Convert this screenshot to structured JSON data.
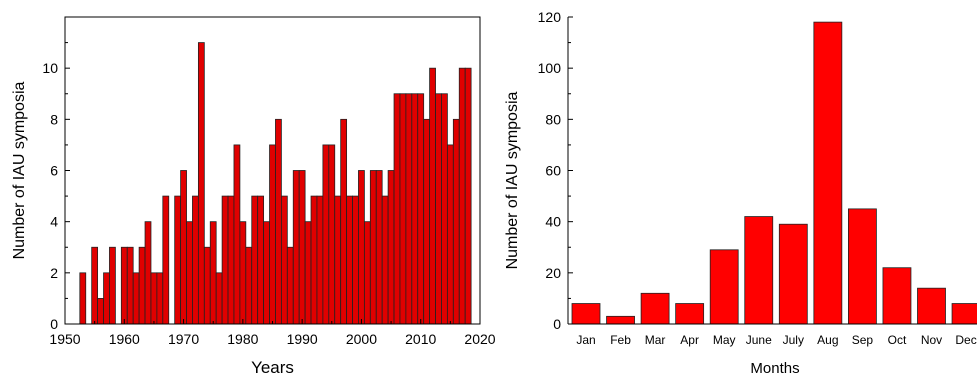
{
  "chart_data": [
    {
      "type": "bar",
      "xlabel": "Years",
      "ylabel": "Number of IAU symposia",
      "xlim": [
        1950,
        2020
      ],
      "ylim": [
        0,
        12
      ],
      "xticks": [
        1950,
        1960,
        1970,
        1980,
        1990,
        2000,
        2010,
        2020
      ],
      "yticks": [
        0,
        2,
        4,
        6,
        8,
        10
      ],
      "bar_color": "#e00000",
      "x": [
        1953,
        1955,
        1956,
        1957,
        1958,
        1960,
        1961,
        1962,
        1963,
        1964,
        1965,
        1966,
        1967,
        1969,
        1970,
        1971,
        1972,
        1973,
        1974,
        1975,
        1976,
        1977,
        1978,
        1979,
        1980,
        1981,
        1982,
        1983,
        1984,
        1985,
        1986,
        1987,
        1988,
        1989,
        1990,
        1991,
        1992,
        1993,
        1994,
        1995,
        1996,
        1997,
        1998,
        1999,
        2000,
        2001,
        2002,
        2003,
        2004,
        2005,
        2006,
        2007,
        2008,
        2009,
        2010,
        2011,
        2012,
        2013,
        2014,
        2015,
        2016,
        2017,
        2018
      ],
      "values": [
        2,
        3,
        1,
        2,
        3,
        3,
        3,
        2,
        3,
        4,
        2,
        2,
        5,
        5,
        6,
        4,
        5,
        11,
        3,
        4,
        2,
        5,
        5,
        7,
        4,
        3,
        5,
        5,
        4,
        7,
        8,
        5,
        3,
        6,
        6,
        4,
        5,
        5,
        7,
        7,
        5,
        8,
        5,
        5,
        6,
        4,
        6,
        6,
        5,
        6,
        9,
        9,
        9,
        9,
        9,
        8,
        10,
        9,
        9,
        7,
        8,
        10,
        10
      ]
    },
    {
      "type": "bar",
      "xlabel": "Months",
      "ylabel": "Number of IAU symposia",
      "ylim": [
        0,
        120
      ],
      "yticks": [
        0,
        20,
        40,
        60,
        80,
        100,
        120
      ],
      "bar_color": "#ff0000",
      "categories": [
        "Jan",
        "Feb",
        "Mar",
        "Apr",
        "May",
        "June",
        "July",
        "Aug",
        "Sep",
        "Oct",
        "Nov",
        "Dec"
      ],
      "values": [
        8,
        3,
        12,
        8,
        29,
        42,
        39,
        118,
        45,
        22,
        14,
        8
      ]
    }
  ]
}
